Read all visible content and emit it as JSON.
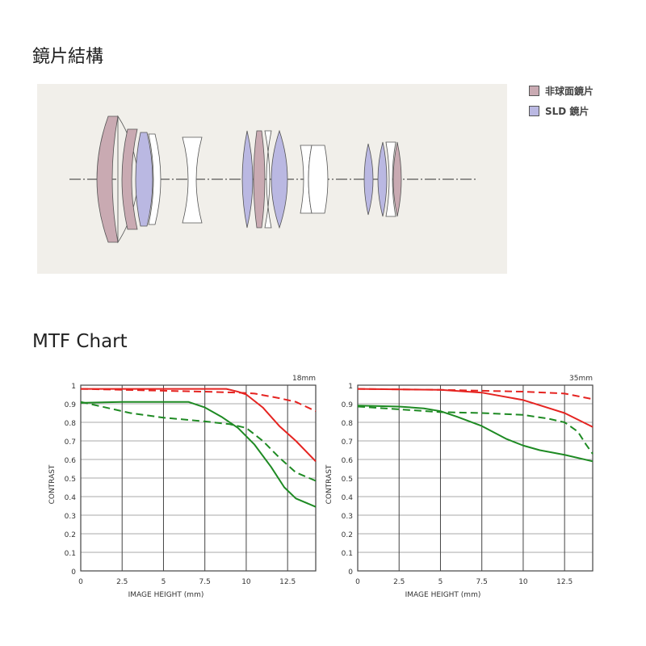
{
  "sections": {
    "lens_title": "鏡片結構",
    "mtf_title": "MTF Chart"
  },
  "legend": [
    {
      "label": "非球面鏡片",
      "color": "#c9aab2"
    },
    {
      "label": "SLD 鏡片",
      "color": "#bab8e2"
    }
  ],
  "chart_data": [
    {
      "type": "line",
      "title": "18mm",
      "xlabel": "IMAGE HEIGHT (mm)",
      "ylabel": "CONTRAST",
      "xlim": [
        0,
        14.2
      ],
      "ylim": [
        0,
        1
      ],
      "grid": true,
      "xticks": [
        "0",
        "2.5",
        "5",
        "7.5",
        "10",
        "12.5"
      ],
      "yticks": [
        "0",
        "0.1",
        "0.2",
        "0.3",
        "0.4",
        "0.5",
        "0.6",
        "0.7",
        "0.8",
        "0.9",
        "1"
      ],
      "series": [
        {
          "color": "#e52421",
          "dash": false,
          "points": [
            [
              0,
              0.98
            ],
            [
              2.5,
              0.98
            ],
            [
              5,
              0.98
            ],
            [
              7.5,
              0.98
            ],
            [
              8.8,
              0.98
            ],
            [
              9.5,
              0.965
            ],
            [
              10,
              0.95
            ],
            [
              11,
              0.88
            ],
            [
              12,
              0.78
            ],
            [
              13,
              0.7
            ],
            [
              14.2,
              0.59
            ]
          ]
        },
        {
          "color": "#e52421",
          "dash": true,
          "points": [
            [
              0,
              0.98
            ],
            [
              5,
              0.97
            ],
            [
              7.5,
              0.965
            ],
            [
              9.5,
              0.96
            ],
            [
              10.5,
              0.955
            ],
            [
              12,
              0.93
            ],
            [
              13,
              0.91
            ],
            [
              14.2,
              0.86
            ]
          ]
        },
        {
          "color": "#1e8a23",
          "dash": false,
          "points": [
            [
              0,
              0.905
            ],
            [
              2.5,
              0.91
            ],
            [
              5,
              0.91
            ],
            [
              6.5,
              0.91
            ],
            [
              7.5,
              0.88
            ],
            [
              8.5,
              0.83
            ],
            [
              9.5,
              0.77
            ],
            [
              10.5,
              0.68
            ],
            [
              11.5,
              0.56
            ],
            [
              12.3,
              0.45
            ],
            [
              13,
              0.39
            ],
            [
              14.2,
              0.345
            ]
          ]
        },
        {
          "color": "#1e8a23",
          "dash": true,
          "points": [
            [
              0,
              0.91
            ],
            [
              1,
              0.89
            ],
            [
              3,
              0.85
            ],
            [
              5,
              0.825
            ],
            [
              7.5,
              0.805
            ],
            [
              9,
              0.79
            ],
            [
              10,
              0.77
            ],
            [
              11,
              0.7
            ],
            [
              12,
              0.61
            ],
            [
              13,
              0.53
            ],
            [
              14.2,
              0.485
            ]
          ]
        }
      ]
    },
    {
      "type": "line",
      "title": "35mm",
      "xlabel": "IMAGE HEIGHT (mm)",
      "ylabel": "CONTRAST",
      "xlim": [
        0,
        14.2
      ],
      "ylim": [
        0,
        1
      ],
      "grid": true,
      "xticks": [
        "0",
        "2.5",
        "5",
        "7.5",
        "10",
        "12.5"
      ],
      "yticks": [
        "0",
        "0.1",
        "0.2",
        "0.3",
        "0.4",
        "0.5",
        "0.6",
        "0.7",
        "0.8",
        "0.9",
        "1"
      ],
      "series": [
        {
          "color": "#e52421",
          "dash": false,
          "points": [
            [
              0,
              0.98
            ],
            [
              5,
              0.975
            ],
            [
              7.5,
              0.96
            ],
            [
              10,
              0.92
            ],
            [
              12.5,
              0.85
            ],
            [
              14.2,
              0.775
            ]
          ]
        },
        {
          "color": "#e52421",
          "dash": true,
          "points": [
            [
              0,
              0.98
            ],
            [
              5,
              0.975
            ],
            [
              7.5,
              0.97
            ],
            [
              10,
              0.965
            ],
            [
              12.5,
              0.955
            ],
            [
              14.2,
              0.925
            ]
          ]
        },
        {
          "color": "#1e8a23",
          "dash": false,
          "points": [
            [
              0,
              0.89
            ],
            [
              2.5,
              0.885
            ],
            [
              4,
              0.875
            ],
            [
              5,
              0.86
            ],
            [
              6,
              0.83
            ],
            [
              7.5,
              0.78
            ],
            [
              9,
              0.71
            ],
            [
              10,
              0.675
            ],
            [
              11,
              0.65
            ],
            [
              12.5,
              0.625
            ],
            [
              14.2,
              0.59
            ]
          ]
        },
        {
          "color": "#1e8a23",
          "dash": true,
          "points": [
            [
              0,
              0.885
            ],
            [
              2.5,
              0.87
            ],
            [
              5,
              0.855
            ],
            [
              7.5,
              0.85
            ],
            [
              10,
              0.84
            ],
            [
              11.5,
              0.82
            ],
            [
              12.5,
              0.8
            ],
            [
              13.3,
              0.75
            ],
            [
              13.8,
              0.68
            ],
            [
              14.2,
              0.63
            ]
          ]
        }
      ]
    }
  ]
}
